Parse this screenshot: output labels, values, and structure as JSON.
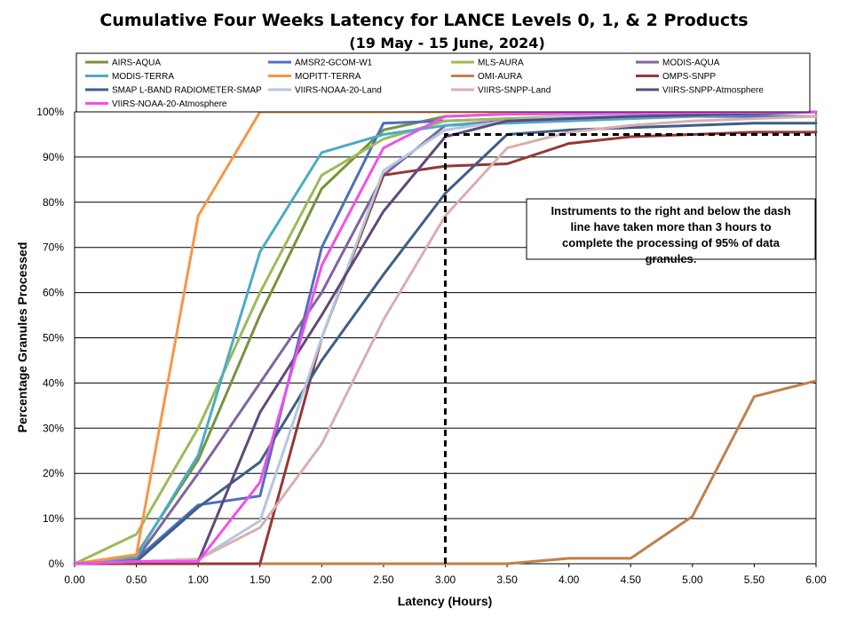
{
  "chart_data": {
    "type": "line",
    "title": "Cumulative Four Weeks Latency  for LANCE Levels 0, 1, & 2 Products",
    "subtitle": "(19  May   -  15  June,  2024)",
    "xlabel": "Latency (Hours)",
    "ylabel": "Percentage Granules Processed",
    "xlim": [
      0,
      6
    ],
    "ylim": [
      0,
      100
    ],
    "x_ticks": [
      "0.00",
      "0.50",
      "1.00",
      "1.50",
      "2.00",
      "2.50",
      "3.00",
      "3.50",
      "4.00",
      "4.50",
      "5.00",
      "5.50",
      "6.00"
    ],
    "y_ticks": [
      "0%",
      "10%",
      "20%",
      "30%",
      "40%",
      "50%",
      "60%",
      "70%",
      "80%",
      "90%",
      "100%"
    ],
    "grid": "horizontal",
    "legend_position": "top",
    "x": [
      0,
      0.5,
      1,
      1.5,
      2,
      2.5,
      3,
      3.5,
      4,
      4.5,
      5,
      5.5,
      6
    ],
    "series": [
      {
        "name": "AIRS-AQUA",
        "color": "#77933C",
        "values": [
          0,
          2,
          23,
          55,
          83,
          96,
          99,
          99.5,
          99.6,
          99.7,
          99.8,
          99.9,
          100
        ]
      },
      {
        "name": "AMSR2-GCOM-W1",
        "color": "#4F6FBE",
        "values": [
          0,
          1,
          13,
          15,
          70,
          97.5,
          98,
          98.5,
          98.7,
          98.8,
          99,
          99,
          99
        ]
      },
      {
        "name": "MLS-AURA",
        "color": "#9BBB59",
        "values": [
          0,
          6.5,
          30,
          60,
          86,
          94,
          98,
          98.5,
          99,
          99.2,
          99.4,
          99.6,
          100
        ]
      },
      {
        "name": "MODIS-AQUA",
        "color": "#8064A2",
        "values": [
          0,
          1,
          20,
          40,
          60,
          86,
          97,
          98,
          98.5,
          99,
          99.3,
          99.6,
          100
        ]
      },
      {
        "name": "MODIS-TERRA",
        "color": "#4BACC6",
        "values": [
          0,
          1.5,
          24,
          69,
          91,
          95,
          97,
          97.5,
          98,
          98.5,
          99,
          99.5,
          100
        ]
      },
      {
        "name": "MOPITT-TERRA",
        "color": "#F79646",
        "values": [
          0,
          2,
          77,
          100,
          100,
          100,
          100,
          100,
          100,
          100,
          100,
          100,
          100
        ]
      },
      {
        "name": "OMI-AURA",
        "color": "#C0804A",
        "values": [
          0,
          0,
          0,
          0,
          0,
          0,
          0,
          0,
          1.2,
          1.2,
          10.5,
          37,
          40.5
        ]
      },
      {
        "name": "OMPS-SNPP",
        "color": "#953735",
        "values": [
          0,
          0,
          0,
          0,
          50,
          86,
          88,
          88.5,
          93,
          94.5,
          95,
          95.5,
          95.5
        ]
      },
      {
        "name": "SMAP L-BAND RADIOMETER-SMAP",
        "color": "#3E5E86",
        "values": [
          0,
          0.5,
          12.5,
          22.5,
          45,
          64,
          82,
          95,
          96,
          96.5,
          97,
          97.5,
          97.5
        ]
      },
      {
        "name": "VIIRS-NOAA-20-Land",
        "color": "#B4C7DE",
        "values": [
          0,
          0.5,
          1,
          9.5,
          50,
          87,
          96,
          98,
          99,
          99.3,
          99.5,
          99.7,
          100
        ]
      },
      {
        "name": "VIIRS-SNPP-Land",
        "color": "#D8AFAE",
        "values": [
          0,
          0.5,
          1,
          8,
          26.5,
          54,
          77,
          92,
          95.5,
          97,
          98,
          98.5,
          99
        ]
      },
      {
        "name": "VIIRS-SNPP-Atmosphere",
        "color": "#60497A",
        "values": [
          0,
          0.5,
          0.5,
          33.5,
          55,
          78,
          94.5,
          98,
          98.5,
          99,
          99.3,
          99.6,
          100
        ]
      },
      {
        "name": "VIIRS-NOAA-20-Atmosphere",
        "color": "#EE50EE",
        "values": [
          0,
          0.5,
          0.5,
          18,
          66,
          92,
          99,
          99.5,
          99.6,
          99.7,
          99.8,
          99.9,
          100
        ]
      }
    ],
    "threshold_line": {
      "x": 3.0,
      "y": 95,
      "style": "dashed",
      "color": "#000000"
    },
    "annotation": "Instruments to the right and below the dash line have taken more than 3 hours to complete the processing of 95% of data granules."
  }
}
